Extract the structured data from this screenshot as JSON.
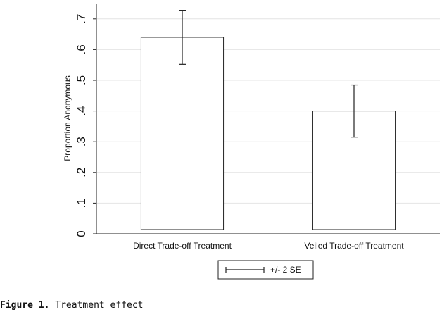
{
  "chart_data": {
    "type": "bar",
    "categories": [
      "Direct Trade-off Treatment",
      "Veiled Trade-off Treatment"
    ],
    "values": [
      0.64,
      0.4
    ],
    "error_low": [
      0.552,
      0.315
    ],
    "error_high": [
      0.728,
      0.485
    ],
    "ylabel": "Proportion Anonymous",
    "xlabel": "",
    "ylim": [
      0,
      0.75
    ],
    "yticks": [
      0,
      0.1,
      0.2,
      0.3,
      0.4,
      0.5,
      0.6,
      0.7
    ],
    "ytick_labels": [
      "0",
      ".1",
      ".2",
      ".3",
      ".4",
      ".5",
      ".6",
      ".7"
    ],
    "legend": {
      "label": "+/- 2 SE",
      "placement": "bottom-center"
    },
    "grid": true,
    "bar_fill": "#ffffff",
    "bar_stroke": "#222222",
    "grid_color": "#e4e4e4"
  },
  "caption": {
    "label": "Figure 1.",
    "text": "Treatment effect"
  }
}
